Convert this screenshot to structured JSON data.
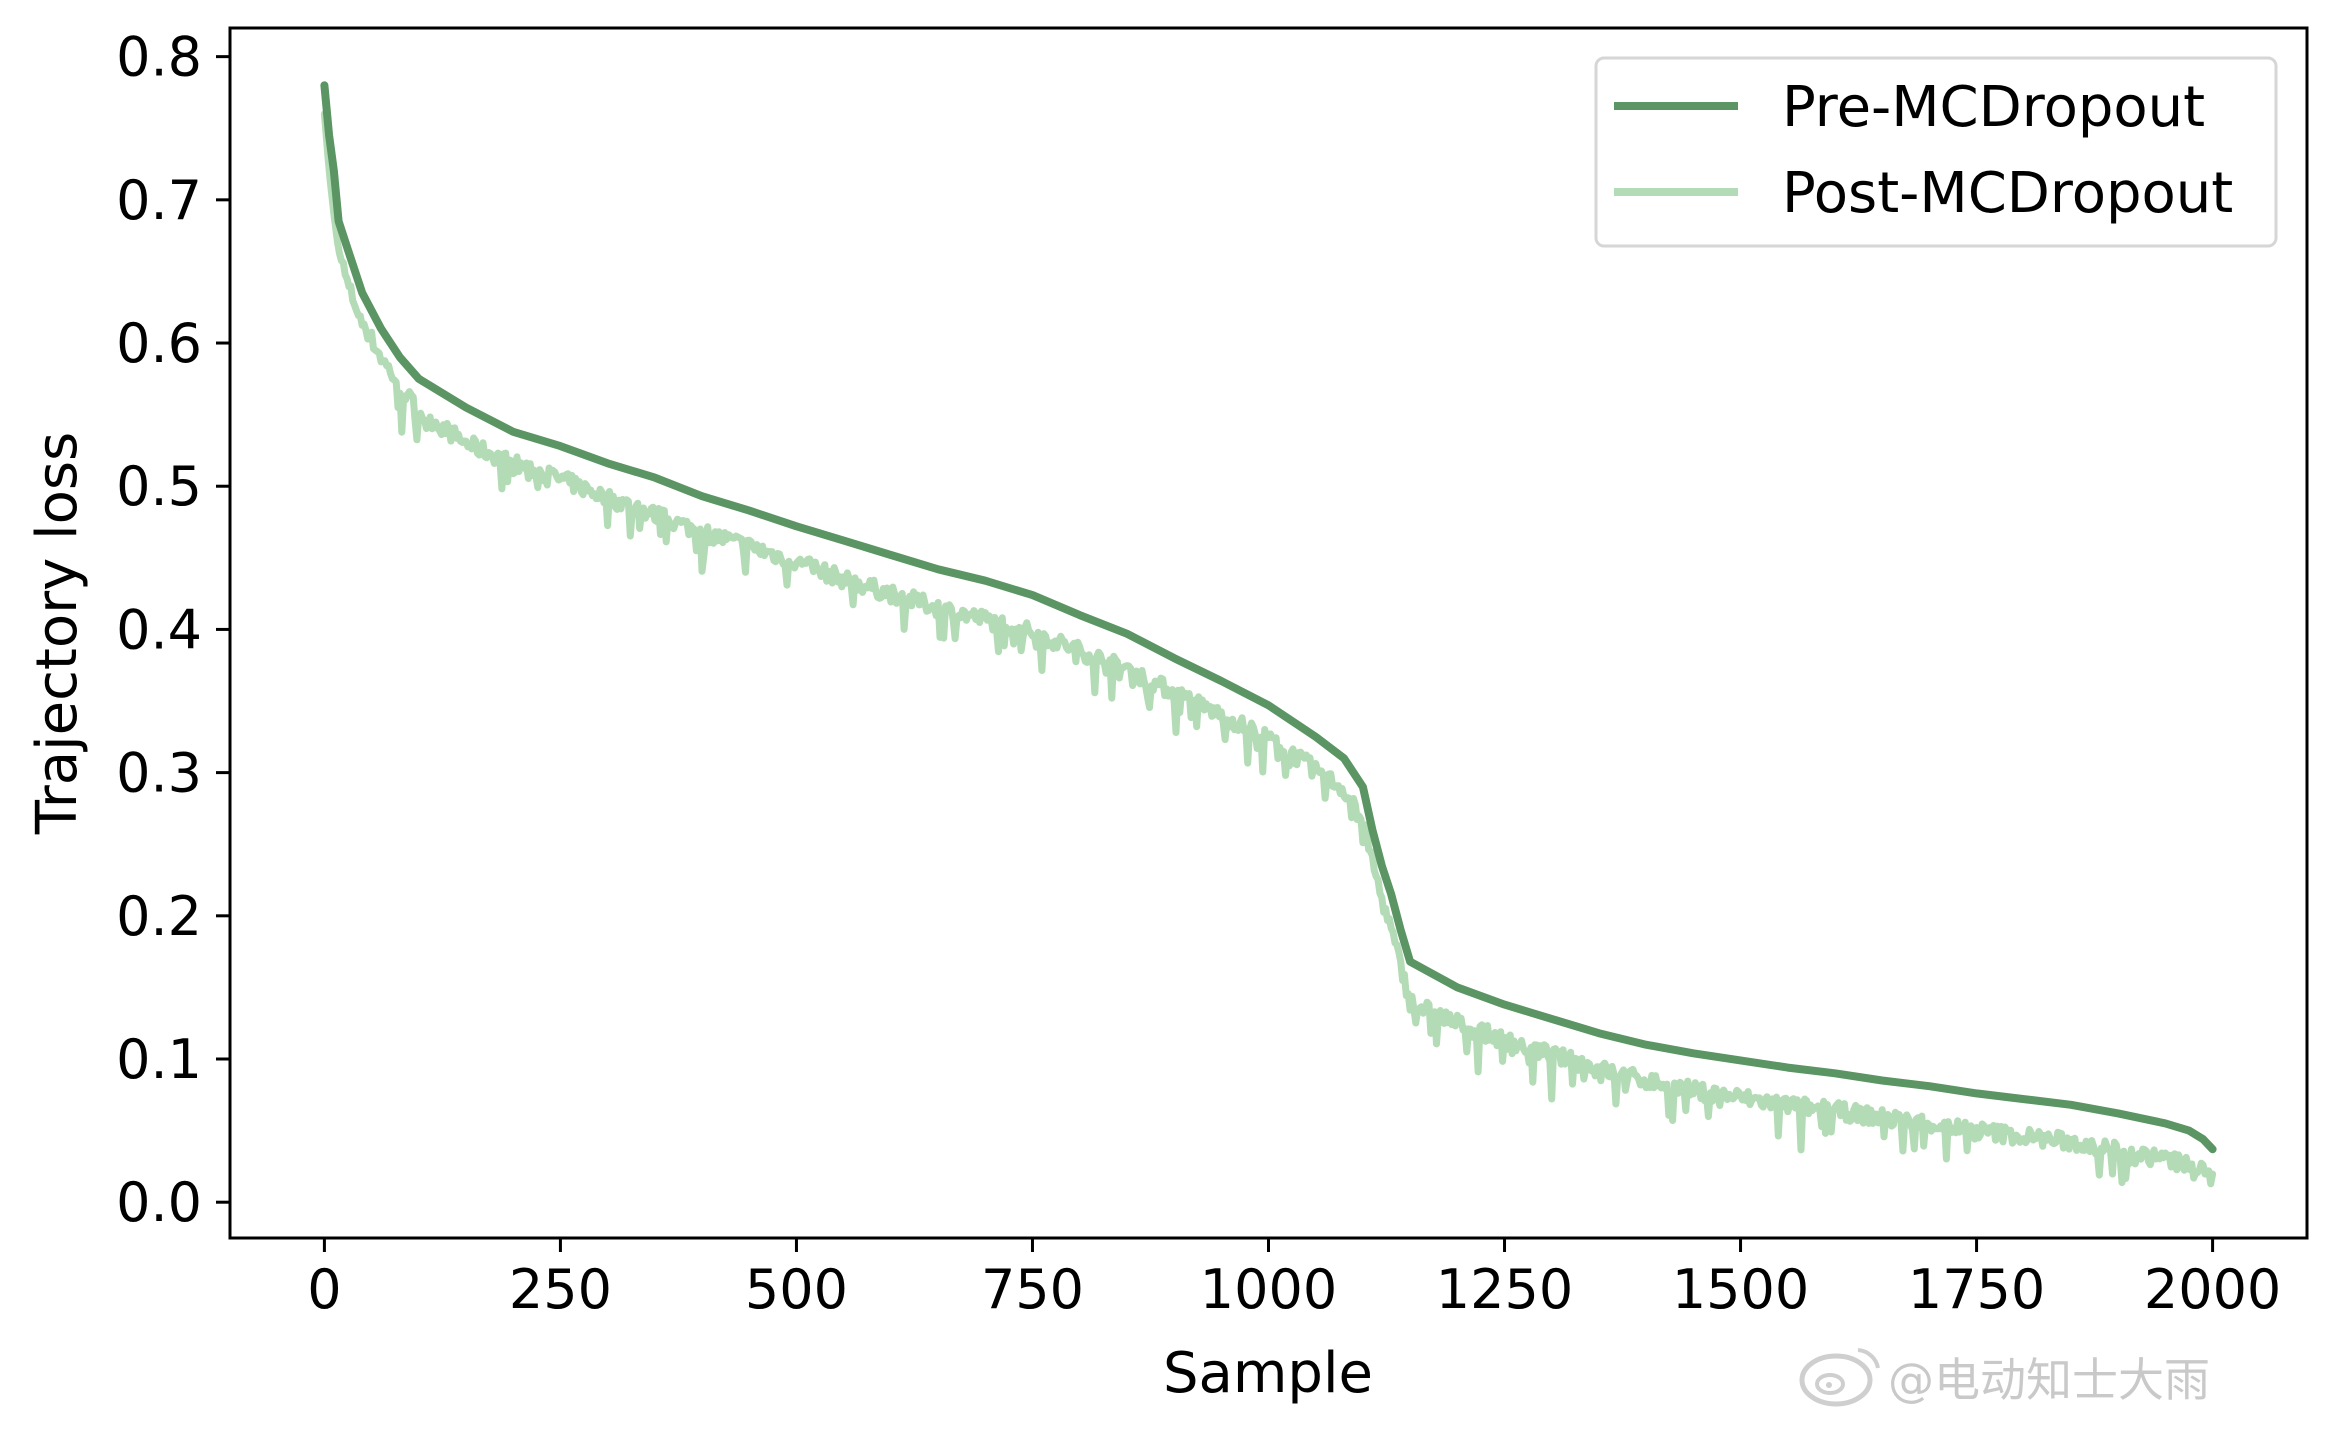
{
  "chart_data": {
    "type": "line",
    "title": "",
    "xlabel": "Sample",
    "ylabel": "Trajectory loss",
    "xlim": [
      -100,
      2100
    ],
    "ylim": [
      -0.025,
      0.82
    ],
    "xticks": [
      0,
      250,
      500,
      750,
      1000,
      1250,
      1500,
      1750,
      2000
    ],
    "xtick_labels": [
      "0",
      "250",
      "500",
      "750",
      "1000",
      "1250",
      "1500",
      "1750",
      "2000"
    ],
    "yticks": [
      0.0,
      0.1,
      0.2,
      0.3,
      0.4,
      0.5,
      0.6,
      0.7,
      0.8
    ],
    "ytick_labels": [
      "0.0",
      "0.1",
      "0.2",
      "0.3",
      "0.4",
      "0.5",
      "0.6",
      "0.7",
      "0.8"
    ],
    "grid": false,
    "legend_position": "top-right",
    "series": [
      {
        "name": "Pre-MCDropout",
        "color": "#5a9563",
        "x": [
          0,
          5,
          10,
          15,
          25,
          40,
          60,
          80,
          100,
          150,
          200,
          250,
          300,
          350,
          400,
          450,
          500,
          550,
          600,
          650,
          700,
          750,
          800,
          850,
          900,
          950,
          1000,
          1050,
          1080,
          1100,
          1110,
          1120,
          1130,
          1140,
          1150,
          1200,
          1250,
          1300,
          1350,
          1400,
          1450,
          1500,
          1550,
          1600,
          1650,
          1700,
          1750,
          1800,
          1850,
          1900,
          1950,
          1975,
          1990,
          2000
        ],
        "y": [
          0.78,
          0.745,
          0.72,
          0.685,
          0.665,
          0.635,
          0.61,
          0.59,
          0.575,
          0.555,
          0.538,
          0.528,
          0.516,
          0.506,
          0.493,
          0.483,
          0.472,
          0.462,
          0.452,
          0.442,
          0.434,
          0.424,
          0.41,
          0.397,
          0.38,
          0.364,
          0.347,
          0.325,
          0.31,
          0.29,
          0.26,
          0.235,
          0.215,
          0.19,
          0.168,
          0.15,
          0.138,
          0.128,
          0.118,
          0.11,
          0.104,
          0.099,
          0.094,
          0.09,
          0.085,
          0.081,
          0.076,
          0.072,
          0.068,
          0.062,
          0.055,
          0.05,
          0.044,
          0.037
        ]
      },
      {
        "name": "Post-MCDropout",
        "color": "#b3dbb5",
        "noise": 0.012,
        "x": [
          0,
          5,
          10,
          15,
          25,
          40,
          60,
          80,
          100,
          150,
          200,
          250,
          300,
          350,
          400,
          450,
          500,
          550,
          600,
          650,
          700,
          750,
          800,
          850,
          900,
          950,
          1000,
          1050,
          1080,
          1100,
          1110,
          1120,
          1130,
          1140,
          1150,
          1200,
          1250,
          1300,
          1350,
          1400,
          1450,
          1500,
          1550,
          1600,
          1650,
          1700,
          1750,
          1800,
          1850,
          1900,
          1950,
          1975,
          1990,
          2000
        ],
        "y": [
          0.76,
          0.72,
          0.69,
          0.665,
          0.64,
          0.615,
          0.59,
          0.57,
          0.552,
          0.53,
          0.516,
          0.505,
          0.492,
          0.48,
          0.468,
          0.458,
          0.447,
          0.435,
          0.425,
          0.415,
          0.407,
          0.398,
          0.385,
          0.372,
          0.356,
          0.34,
          0.324,
          0.302,
          0.288,
          0.266,
          0.238,
          0.212,
          0.19,
          0.165,
          0.14,
          0.125,
          0.113,
          0.103,
          0.093,
          0.085,
          0.078,
          0.073,
          0.068,
          0.064,
          0.059,
          0.055,
          0.05,
          0.046,
          0.042,
          0.036,
          0.03,
          0.026,
          0.021,
          0.016
        ]
      }
    ]
  },
  "watermark": {
    "text": "@电动知士大雨",
    "icon": "weibo-logo-icon"
  }
}
